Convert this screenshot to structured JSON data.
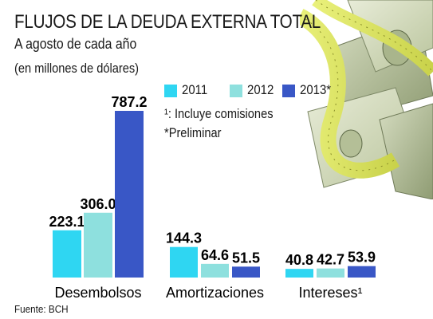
{
  "header": {
    "title": "FLUJOS DE LA DEUDA EXTERNA TOTAL",
    "subtitle": "A agosto de cada año",
    "units": "(en millones de dólares)"
  },
  "legend": [
    {
      "label": "2011",
      "color": "#2fd6f2"
    },
    {
      "label": "2012",
      "color": "#8ee0de"
    },
    {
      "label": "2013*",
      "color": "#3957c6"
    }
  ],
  "notes": {
    "note1": "¹: Incluye comisiones",
    "note2": "*Preliminar"
  },
  "source": "Fuente: BCH",
  "decoration": {
    "icon": "money-and-measuring-tape-photo"
  },
  "chart_data": {
    "type": "bar",
    "title": "FLUJOS DE LA DEUDA EXTERNA TOTAL",
    "subtitle": "A agosto de cada año",
    "ylabel": "",
    "xlabel": "",
    "ylim": [
      0,
      800
    ],
    "grid": false,
    "legend_position": "top-right",
    "categories": [
      "Desembolsos",
      "Amortizaciones",
      "Intereses¹"
    ],
    "series": [
      {
        "name": "2011",
        "values": [
          223.1,
          144.3,
          40.8
        ],
        "labels": [
          "223.1",
          "144.3",
          "40.8"
        ]
      },
      {
        "name": "2012",
        "values": [
          306.0,
          64.6,
          42.7
        ],
        "labels": [
          "306.0",
          "64.6",
          "42.7"
        ]
      },
      {
        "name": "2013*",
        "values": [
          787.2,
          51.5,
          53.9
        ],
        "labels": [
          "787.2",
          "51.5",
          "53.9"
        ]
      }
    ]
  }
}
